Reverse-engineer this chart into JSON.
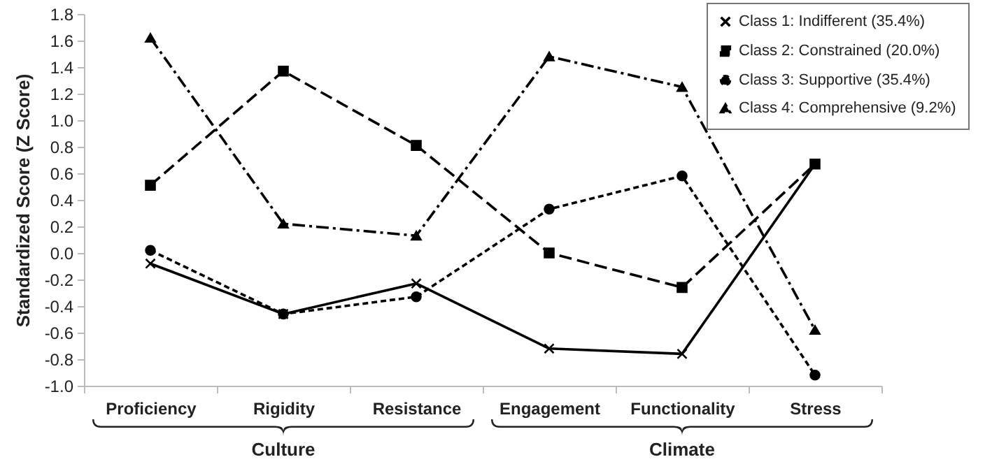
{
  "chart_data": {
    "type": "line",
    "categories": [
      "Proficiency",
      "Rigidity",
      "Resistance",
      "Engagement",
      "Functionality",
      "Stress"
    ],
    "ylabel": "Standardized Score (Z Score)",
    "ylim": [
      -1.0,
      1.8
    ],
    "yticks": [
      {
        "value": -1.0,
        "label": "-1.0"
      },
      {
        "value": -0.8,
        "label": "-0.8"
      },
      {
        "value": -0.6,
        "label": "-0.6"
      },
      {
        "value": -0.4,
        "label": "-0.4"
      },
      {
        "value": -0.2,
        "label": "-0.2"
      },
      {
        "value": 0,
        "label": "0.0"
      },
      {
        "value": 0.2,
        "label": "0.2"
      },
      {
        "value": 0.4,
        "label": "0.4"
      },
      {
        "value": 0.6,
        "label": "0.6"
      },
      {
        "value": 0.8,
        "label": "0.8"
      },
      {
        "value": 1.0,
        "label": "1.0"
      },
      {
        "value": 1.2,
        "label": "1.2"
      },
      {
        "value": 1.4,
        "label": "1.4"
      },
      {
        "value": 1.6,
        "label": "1.6"
      },
      {
        "value": 1.8,
        "label": "1.8"
      }
    ],
    "grid": false,
    "legend": "top right",
    "series": [
      {
        "name": "Class 1: Indifferent (35.4%)",
        "color": "#000000",
        "marker": "cross",
        "line_style": "solid",
        "values": [
          -0.08,
          -0.46,
          -0.23,
          -0.72,
          -0.76,
          0.67
        ]
      },
      {
        "name": "Class 2: Constrained (20.0%)",
        "color": "#000000",
        "marker": "square",
        "line_style": "dashed",
        "values": [
          0.51,
          1.37,
          0.81,
          0.0,
          -0.26,
          0.67
        ]
      },
      {
        "name": "Class 3: Supportive (35.4%)",
        "color": "#000000",
        "marker": "circle",
        "line_style": "dotted",
        "values": [
          0.02,
          -0.46,
          -0.33,
          0.33,
          0.58,
          -0.92
        ]
      },
      {
        "name": "Class 4: Comprehensive (9.2%)",
        "color": "#000000",
        "marker": "triangle",
        "line_style": "dashdot",
        "values": [
          1.62,
          0.22,
          0.13,
          1.48,
          1.25,
          -0.58
        ]
      }
    ],
    "annotations": [
      "Culture",
      "Climate"
    ]
  }
}
